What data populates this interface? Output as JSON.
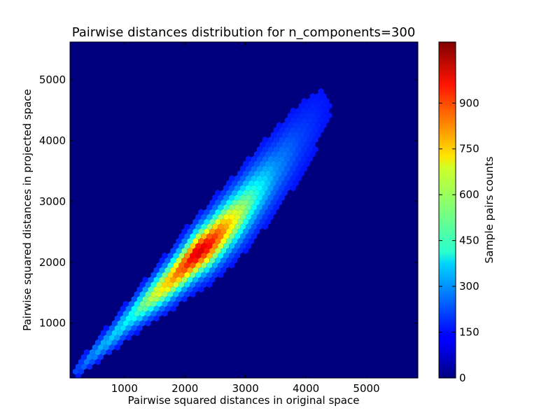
{
  "chart_data": {
    "type": "hexbin",
    "title": "Pairwise distances distribution for n_components=300",
    "xlabel": "Pairwise squared distances in original space",
    "ylabel": "Pairwise squared distances in projected space",
    "xlim": [
      100,
      5850
    ],
    "ylim": [
      100,
      5620
    ],
    "x_ticks": [
      1000,
      2000,
      3000,
      4000,
      5000
    ],
    "y_ticks": [
      1000,
      2000,
      3000,
      4000,
      5000
    ],
    "x_tick_labels": [
      "1000",
      "2000",
      "3000",
      "4000",
      "5000"
    ],
    "y_tick_labels": [
      "1000",
      "2000",
      "3000",
      "4000",
      "5000"
    ],
    "colormap": "jet",
    "background_color": "#00007f",
    "colorbar": {
      "label": "Sample pairs counts",
      "min": 0,
      "max": 1100,
      "ticks": [
        0,
        150,
        300,
        450,
        600,
        750,
        900
      ],
      "tick_labels": [
        "0",
        "150",
        "300",
        "450",
        "600",
        "750",
        "900"
      ]
    },
    "density_ridge": [
      {
        "x": 200,
        "y": 200,
        "count": 90
      },
      {
        "x": 500,
        "y": 500,
        "count": 200
      },
      {
        "x": 800,
        "y": 780,
        "count": 260
      },
      {
        "x": 1100,
        "y": 1100,
        "count": 330
      },
      {
        "x": 1400,
        "y": 1380,
        "count": 520
      },
      {
        "x": 1700,
        "y": 1650,
        "count": 700
      },
      {
        "x": 2000,
        "y": 1950,
        "count": 880
      },
      {
        "x": 2200,
        "y": 2150,
        "count": 1000
      },
      {
        "x": 2400,
        "y": 2300,
        "count": 940
      },
      {
        "x": 2600,
        "y": 2500,
        "count": 800
      },
      {
        "x": 2900,
        "y": 2800,
        "count": 560
      },
      {
        "x": 3200,
        "y": 3150,
        "count": 340
      },
      {
        "x": 3500,
        "y": 3500,
        "count": 190
      },
      {
        "x": 3900,
        "y": 4000,
        "count": 90
      },
      {
        "x": 4300,
        "y": 4500,
        "count": 35
      }
    ],
    "grid": false,
    "legend": "none"
  }
}
